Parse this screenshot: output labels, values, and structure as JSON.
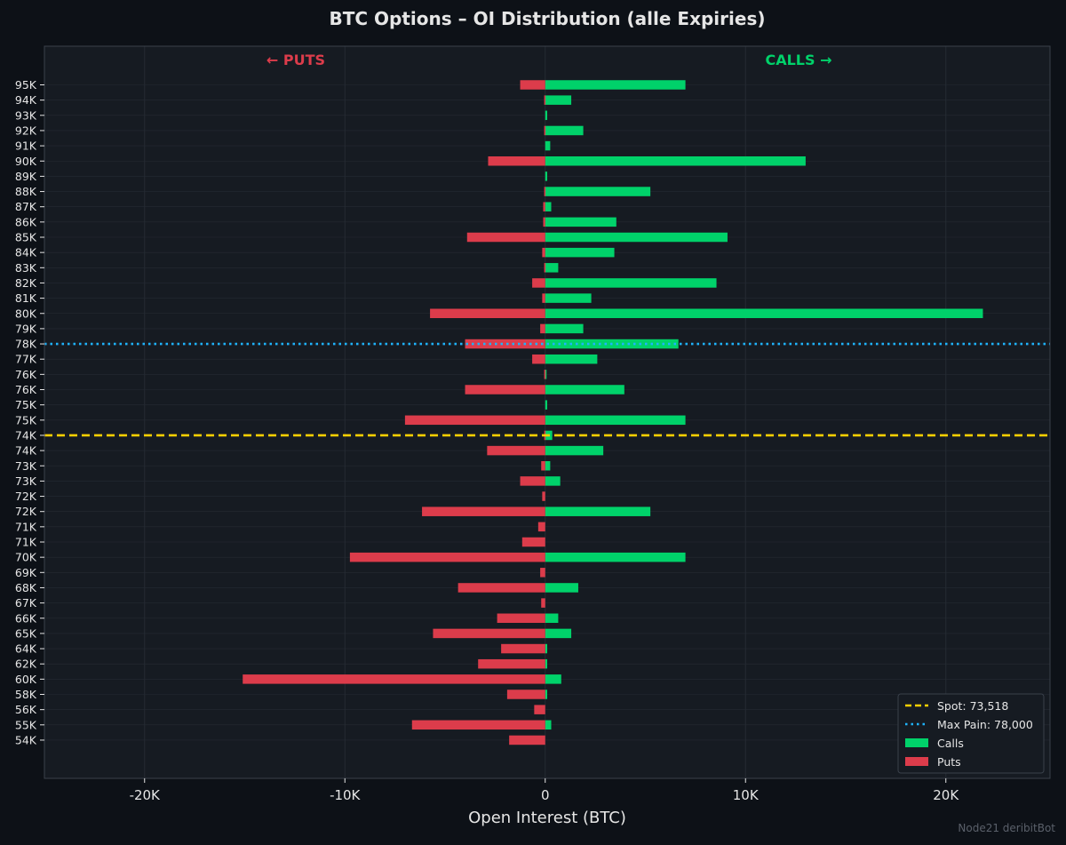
{
  "colors": {
    "background": "#0d1117",
    "plot_background": "#161b22",
    "frame": "#3a414b",
    "grid": "#252b33",
    "text": "#e6e6e6",
    "calls": "#00d26a",
    "puts": "#dc3c4b",
    "spot": "#ffd000",
    "max_pain": "#1eb4ff",
    "watermark": "#5a606a"
  },
  "chart_data": {
    "type": "bar",
    "orientation": "horizontal",
    "title": "BTC Options – OI Distribution (alle Expiries)",
    "xlabel": "Open Interest (BTC)",
    "ylabel": "",
    "xlim": [
      -25000,
      25200
    ],
    "x_ticks": [
      {
        "value": -20000,
        "label": "-20K"
      },
      {
        "value": -10000,
        "label": "-10K"
      },
      {
        "value": 0,
        "label": "0"
      },
      {
        "value": 10000,
        "label": "10K"
      },
      {
        "value": 20000,
        "label": "20K"
      }
    ],
    "grid": true,
    "side_labels": {
      "puts": "← PUTS",
      "calls": "CALLS →"
    },
    "categories": [
      "95K",
      "94K",
      "93K",
      "92K",
      "91K",
      "90K",
      "89K",
      "88K",
      "87K",
      "86K",
      "85K",
      "84K",
      "83K",
      "82K",
      "81K",
      "80K",
      "79K",
      "78K",
      "77K",
      "76K",
      "76K",
      "75K",
      "75K",
      "74K",
      "74K",
      "73K",
      "73K",
      "72K",
      "72K",
      "71K",
      "71K",
      "70K",
      "69K",
      "68K",
      "67K",
      "66K",
      "65K",
      "64K",
      "62K",
      "60K",
      "58K",
      "56K",
      "55K",
      "54K"
    ],
    "series": [
      {
        "name": "Calls",
        "values": [
          7000,
          1300,
          100,
          1900,
          250,
          13000,
          100,
          5250,
          300,
          3550,
          9100,
          3450,
          650,
          8550,
          2300,
          21850,
          1900,
          6650,
          2600,
          50,
          3950,
          100,
          7000,
          350,
          2900,
          250,
          750,
          0,
          5250,
          0,
          0,
          7000,
          0,
          1650,
          0,
          650,
          1300,
          100,
          100,
          800,
          100,
          0,
          300,
          0
        ]
      },
      {
        "name": "Puts",
        "values": [
          -1250,
          -50,
          0,
          -50,
          0,
          -2850,
          0,
          -50,
          -100,
          -100,
          -3900,
          -150,
          -50,
          -650,
          -150,
          -5750,
          -250,
          -4000,
          -650,
          -50,
          -4000,
          0,
          -7000,
          -50,
          -2900,
          -200,
          -1250,
          -150,
          -6150,
          -350,
          -1150,
          -9750,
          -250,
          -4350,
          -200,
          -2400,
          -5600,
          -2200,
          -3350,
          -15100,
          -1900,
          -550,
          -6650,
          -1800
        ]
      }
    ],
    "reference_lines": [
      {
        "name": "Spot",
        "label": "Spot: 73,518",
        "value": 73518,
        "style": "dashed",
        "color": "#ffd000"
      },
      {
        "name": "Max Pain",
        "label": "Max Pain: 78,000",
        "value": 78000,
        "style": "dotted",
        "color": "#1eb4ff"
      }
    ],
    "legend": {
      "position": "bottom-right",
      "entries": [
        "Spot: 73,518",
        "Max Pain: 78,000",
        "Calls",
        "Puts"
      ]
    }
  },
  "watermark": "Node21 deribitBot"
}
